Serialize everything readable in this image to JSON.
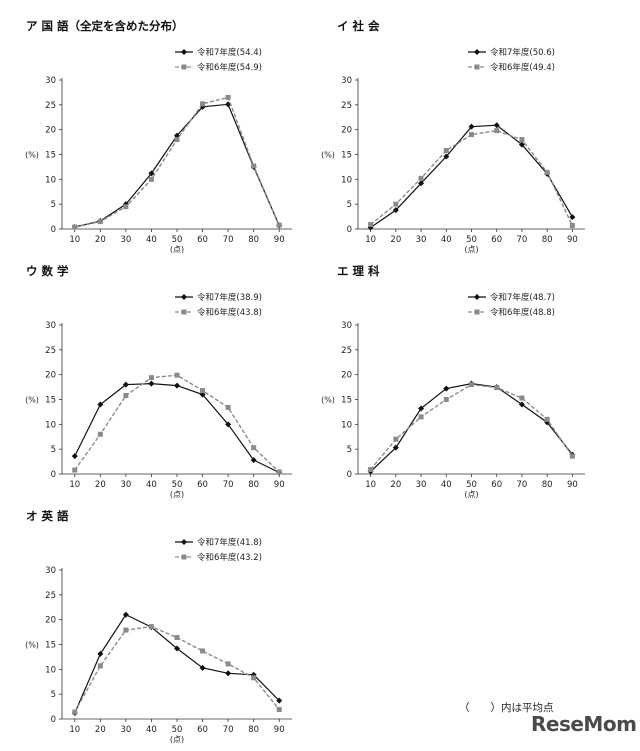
{
  "footnote": "（　　）内は平均点",
  "logo_text": "ReseMom",
  "colors": {
    "series_2025": "#111111",
    "series_2024": "#8a8a8a"
  },
  "chart_data": [
    {
      "type": "line",
      "title": "ア 国 語（全定を含めた分布）",
      "x": [
        10,
        20,
        30,
        40,
        50,
        60,
        70,
        80,
        90
      ],
      "xlabel": "(点)",
      "ylabel": "(%)",
      "ylim": [
        0,
        30
      ],
      "yticks": [
        0,
        5,
        10,
        15,
        20,
        25,
        30
      ],
      "grid": false,
      "legend": "top-right",
      "series": [
        {
          "name": "令和7年度(54.4)",
          "marker": "diamond",
          "style": "solid",
          "values": [
            0.4,
            1.6,
            5.0,
            11.2,
            18.8,
            24.6,
            25.1,
            12.5,
            0.7
          ]
        },
        {
          "name": "令和6年度(54.9)",
          "marker": "square",
          "style": "dashed",
          "values": [
            0.4,
            1.5,
            4.5,
            10.0,
            18.0,
            25.2,
            26.5,
            12.7,
            0.8
          ]
        }
      ]
    },
    {
      "type": "line",
      "title": "イ 社 会",
      "x": [
        10,
        20,
        30,
        40,
        50,
        60,
        70,
        80,
        90
      ],
      "xlabel": "(点)",
      "ylabel": "(%)",
      "ylim": [
        0,
        30
      ],
      "yticks": [
        0,
        5,
        10,
        15,
        20,
        25,
        30
      ],
      "grid": false,
      "legend": "top-right",
      "series": [
        {
          "name": "令和7年度(50.6)",
          "marker": "diamond",
          "style": "solid",
          "values": [
            0.3,
            3.8,
            9.2,
            14.6,
            20.6,
            20.9,
            17.0,
            11.1,
            2.4
          ]
        },
        {
          "name": "令和6年度(49.4)",
          "marker": "square",
          "style": "dashed",
          "values": [
            0.9,
            5.0,
            10.2,
            15.8,
            19.0,
            19.8,
            18.0,
            11.4,
            0.7
          ]
        }
      ]
    },
    {
      "type": "line",
      "title": "ウ 数 学",
      "x": [
        10,
        20,
        30,
        40,
        50,
        60,
        70,
        80,
        90
      ],
      "xlabel": "(点)",
      "ylabel": "(%)",
      "ylim": [
        0,
        30
      ],
      "yticks": [
        0,
        5,
        10,
        15,
        20,
        25,
        30
      ],
      "grid": false,
      "legend": "top-right",
      "series": [
        {
          "name": "令和7年度(38.9)",
          "marker": "diamond",
          "style": "solid",
          "values": [
            3.6,
            14.0,
            18.0,
            18.2,
            17.8,
            16.0,
            10.0,
            2.8,
            0.3
          ]
        },
        {
          "name": "令和6年度(43.8)",
          "marker": "square",
          "style": "dashed",
          "values": [
            0.8,
            8.0,
            15.8,
            19.4,
            19.9,
            16.8,
            13.4,
            5.3,
            0.4
          ]
        }
      ]
    },
    {
      "type": "line",
      "title": "エ 理 科",
      "x": [
        10,
        20,
        30,
        40,
        50,
        60,
        70,
        80,
        90
      ],
      "xlabel": "(点)",
      "ylabel": "(%)",
      "ylim": [
        0,
        30
      ],
      "yticks": [
        0,
        5,
        10,
        15,
        20,
        25,
        30
      ],
      "grid": false,
      "legend": "top-right",
      "series": [
        {
          "name": "令和7年度(48.7)",
          "marker": "diamond",
          "style": "solid",
          "values": [
            0.5,
            5.3,
            13.2,
            17.2,
            18.2,
            17.5,
            14.0,
            10.4,
            3.9
          ]
        },
        {
          "name": "令和6年度(48.8)",
          "marker": "square",
          "style": "dashed",
          "values": [
            0.9,
            7.0,
            11.5,
            15.0,
            18.0,
            17.4,
            15.3,
            11.0,
            3.6
          ]
        }
      ]
    },
    {
      "type": "line",
      "title": "オ 英 語",
      "x": [
        10,
        20,
        30,
        40,
        50,
        60,
        70,
        80,
        90
      ],
      "xlabel": "(点)",
      "ylabel": "(%)",
      "ylim": [
        0,
        30
      ],
      "yticks": [
        0,
        5,
        10,
        15,
        20,
        25,
        30
      ],
      "grid": false,
      "legend": "top-right",
      "series": [
        {
          "name": "令和7年度(41.8)",
          "marker": "diamond",
          "style": "solid",
          "values": [
            1.2,
            13.1,
            21.0,
            18.5,
            14.2,
            10.3,
            9.2,
            8.9,
            3.7
          ]
        },
        {
          "name": "令和6年度(43.2)",
          "marker": "square",
          "style": "dashed",
          "values": [
            1.4,
            10.7,
            17.9,
            18.6,
            16.4,
            13.7,
            11.1,
            8.3,
            1.9
          ]
        }
      ]
    }
  ]
}
